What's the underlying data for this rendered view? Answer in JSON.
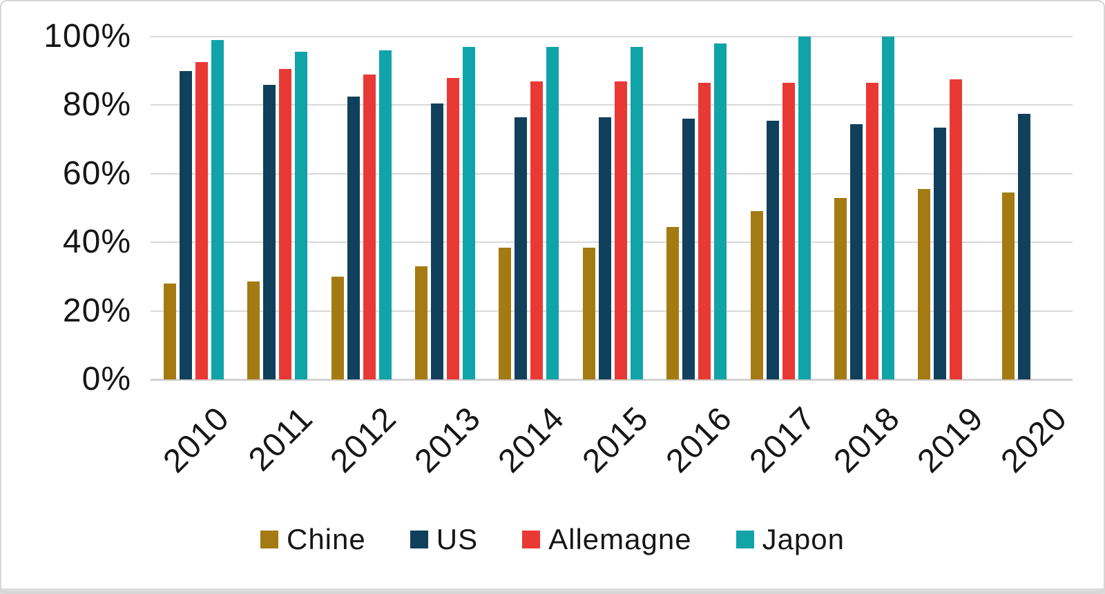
{
  "chart_data": {
    "type": "bar",
    "title": "",
    "xlabel": "",
    "ylabel": "",
    "categories": [
      "2010",
      "2011",
      "2012",
      "2013",
      "2014",
      "2015",
      "2016",
      "2017",
      "2018",
      "2019",
      "2020"
    ],
    "series": [
      {
        "name": "Chine",
        "color": "#A47A12",
        "values": [
          28,
          28.5,
          30,
          33,
          38.5,
          38.5,
          44.5,
          49,
          53,
          55.5,
          54.5
        ]
      },
      {
        "name": "US",
        "color": "#10405C",
        "values": [
          90,
          86,
          82.5,
          80.5,
          76.5,
          76.5,
          76,
          75.5,
          74.5,
          73.5,
          77.5
        ]
      },
      {
        "name": "Allemagne",
        "color": "#E93934",
        "values": [
          92.5,
          90.5,
          89,
          88,
          87,
          87,
          86.5,
          86.5,
          86.5,
          87.5,
          null
        ]
      },
      {
        "name": "Japon",
        "color": "#10A3A8",
        "values": [
          99,
          95.5,
          96,
          97,
          97,
          97,
          98,
          100,
          100,
          null,
          null
        ]
      }
    ],
    "ylim": [
      0,
      100
    ],
    "yticks": [
      "0%",
      "20%",
      "40%",
      "60%",
      "80%",
      "100%"
    ],
    "grid": true,
    "gridline_color": "#d9d9d9",
    "legend_position": "bottom"
  }
}
